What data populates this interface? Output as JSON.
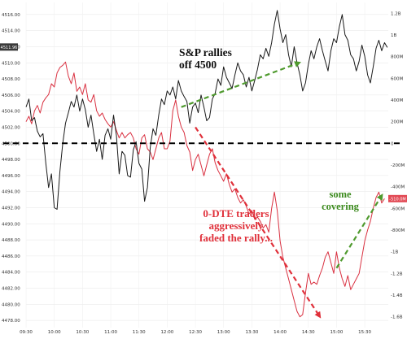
{
  "chart_data": {
    "type": "line",
    "x_ticks": [
      "09:30",
      "10:00",
      "10:30",
      "11:00",
      "11:30",
      "12:00",
      "12:30",
      "13:00",
      "13:30",
      "14:00",
      "14:30",
      "15:00",
      "15:30"
    ],
    "y_left": {
      "ticks": [
        "4516.00",
        "4514.00",
        "4512.00",
        "4510.00",
        "4508.00",
        "4506.00",
        "4504.00",
        "4502.00",
        "4500.00",
        "4498.00",
        "4496.00",
        "4494.00",
        "4492.00",
        "4490.00",
        "4488.00",
        "4486.00",
        "4484.00",
        "4482.00",
        "4480.00",
        "4478.00"
      ],
      "range": [
        4477.1,
        4517.5
      ],
      "last_value_label": "4511.96"
    },
    "y_right": {
      "ticks": [
        "1.2B",
        "1B",
        "800M",
        "600M",
        "400M",
        "200M",
        "0",
        "-200M",
        "-400M",
        "-600M",
        "-800M",
        "-1B",
        "-1.2B",
        "-1.4B",
        "-1.6B"
      ],
      "tick_values": [
        1.2,
        1.0,
        0.8,
        0.6,
        0.4,
        0.2,
        0,
        -0.2,
        -0.4,
        -0.6,
        -0.8,
        -1.0,
        -1.2,
        -1.4,
        -1.6
      ],
      "range": [
        -1.7,
        1.3
      ],
      "last_value_label": "-510.0M"
    },
    "grid": true,
    "series": [
      {
        "axis": "left",
        "color": "#1a1a1a",
        "x": [
          "09:30",
          "09:33",
          "09:36",
          "09:39",
          "09:42",
          "09:45",
          "09:48",
          "09:51",
          "09:54",
          "09:57",
          "10:00",
          "10:03",
          "10:06",
          "10:09",
          "10:12",
          "10:15",
          "10:18",
          "10:21",
          "10:24",
          "10:27",
          "10:30",
          "10:33",
          "10:36",
          "10:39",
          "10:42",
          "10:45",
          "10:48",
          "10:51",
          "10:54",
          "10:57",
          "11:00",
          "11:03",
          "11:06",
          "11:09",
          "11:12",
          "11:15",
          "11:18",
          "11:21",
          "11:24",
          "11:27",
          "11:30",
          "11:33",
          "11:36",
          "11:39",
          "11:42",
          "11:45",
          "11:48",
          "11:51",
          "11:54",
          "11:57",
          "12:00",
          "12:03",
          "12:06",
          "12:09",
          "12:12",
          "12:15",
          "12:18",
          "12:21",
          "12:24",
          "12:27",
          "12:30",
          "12:33",
          "12:36",
          "12:39",
          "12:42",
          "12:45",
          "12:48",
          "12:51",
          "12:54",
          "12:57",
          "13:00",
          "13:03",
          "13:06",
          "13:09",
          "13:12",
          "13:15",
          "13:18",
          "13:21",
          "13:24",
          "13:27",
          "13:30",
          "13:33",
          "13:36",
          "13:39",
          "13:42",
          "13:45",
          "13:48",
          "13:51",
          "13:54",
          "13:57",
          "14:00",
          "14:03",
          "14:06",
          "14:09",
          "14:12",
          "14:15",
          "14:18",
          "14:21",
          "14:24",
          "14:27",
          "14:30",
          "14:33",
          "14:36",
          "14:39",
          "14:42",
          "14:45",
          "14:48",
          "14:51",
          "14:54",
          "14:57",
          "15:00",
          "15:03",
          "15:06",
          "15:09",
          "15:12",
          "15:15",
          "15:18",
          "15:21",
          "15:24",
          "15:27",
          "15:30",
          "15:33",
          "15:36",
          "15:39",
          "15:42",
          "15:45",
          "15:48",
          "15:51",
          "15:54"
        ],
        "values": [
          4504.5,
          4505.5,
          4502.8,
          4503.2,
          4501.5,
          4500.8,
          4501.2,
          4497.5,
          4494.5,
          4496.2,
          4492.0,
          4491.8,
          4496.5,
          4500.0,
          4502.5,
          4503.8,
          4505.2,
          4504.5,
          4506.0,
          4504.0,
          4505.5,
          4504.2,
          4502.0,
          4503.5,
          4501.2,
          4499.0,
          4500.5,
          4498.0,
          4501.0,
          4501.8,
          4500.5,
          4503.5,
          4501.0,
          4496.2,
          4499.0,
          4498.5,
          4496.0,
          4495.8,
          4499.2,
          4500.2,
          4497.5,
          4496.8,
          4492.8,
          4494.5,
          4499.5,
          4501.8,
          4501.0,
          4503.5,
          4505.5,
          4504.8,
          4506.5,
          4506.0,
          4507.0,
          4505.5,
          4507.8,
          4506.5,
          4505.8,
          4505.2,
          4502.5,
          4504.5,
          4505.0,
          4503.8,
          4506.0,
          4504.5,
          4502.8,
          4503.2,
          4505.5,
          4506.2,
          4508.0,
          4507.2,
          4509.5,
          4508.2,
          4507.5,
          4506.8,
          4508.5,
          4510.0,
          4509.0,
          4508.5,
          4507.0,
          4508.2,
          4506.5,
          4507.8,
          4509.2,
          4511.0,
          4510.5,
          4511.8,
          4510.8,
          4512.5,
          4514.8,
          4516.5,
          4514.2,
          4512.5,
          4513.5,
          4511.0,
          4509.5,
          4512.0,
          4510.0,
          4508.5,
          4506.5,
          4507.5,
          4509.8,
          4511.5,
          4510.5,
          4512.0,
          4513.0,
          4511.5,
          4510.2,
          4509.0,
          4511.5,
          4513.0,
          4512.5,
          4514.5,
          4516.0,
          4513.5,
          4512.8,
          4511.0,
          4510.5,
          4509.0,
          4510.2,
          4512.2,
          4510.8,
          4508.5,
          4507.5,
          4509.5,
          4511.8,
          4512.8,
          4511.5,
          4512.5,
          4511.9
        ]
      },
      {
        "axis": "right",
        "color": "#d93040",
        "x": [
          "09:30",
          "09:33",
          "09:36",
          "09:39",
          "09:42",
          "09:45",
          "09:48",
          "09:51",
          "09:54",
          "09:57",
          "10:00",
          "10:03",
          "10:06",
          "10:09",
          "10:12",
          "10:15",
          "10:18",
          "10:21",
          "10:24",
          "10:27",
          "10:30",
          "10:33",
          "10:36",
          "10:39",
          "10:42",
          "10:45",
          "10:48",
          "10:51",
          "10:54",
          "10:57",
          "11:00",
          "11:03",
          "11:06",
          "11:09",
          "11:12",
          "11:15",
          "11:18",
          "11:21",
          "11:24",
          "11:27",
          "11:30",
          "11:33",
          "11:36",
          "11:39",
          "11:42",
          "11:45",
          "11:48",
          "11:51",
          "11:54",
          "11:57",
          "12:00",
          "12:03",
          "12:06",
          "12:09",
          "12:12",
          "12:15",
          "12:18",
          "12:21",
          "12:24",
          "12:27",
          "12:30",
          "12:33",
          "12:36",
          "12:39",
          "12:42",
          "12:45",
          "12:48",
          "12:51",
          "12:54",
          "12:57",
          "13:00",
          "13:03",
          "13:06",
          "13:09",
          "13:12",
          "13:15",
          "13:18",
          "13:21",
          "13:24",
          "13:27",
          "13:30",
          "13:33",
          "13:36",
          "13:39",
          "13:42",
          "13:45",
          "13:48",
          "13:51",
          "13:54",
          "13:57",
          "14:00",
          "14:03",
          "14:06",
          "14:09",
          "14:12",
          "14:15",
          "14:18",
          "14:21",
          "14:24",
          "14:27",
          "14:30",
          "14:33",
          "14:36",
          "14:39",
          "14:42",
          "14:45",
          "14:48",
          "14:51",
          "14:54",
          "14:57",
          "15:00",
          "15:03",
          "15:06",
          "15:09",
          "15:12",
          "15:15",
          "15:18",
          "15:21",
          "15:24",
          "15:27",
          "15:30",
          "15:33",
          "15:36",
          "15:39",
          "15:42",
          "15:45",
          "15:48",
          "15:51"
        ],
        "values": [
          0.2,
          0.25,
          0.18,
          0.3,
          0.35,
          0.28,
          0.38,
          0.42,
          0.45,
          0.55,
          0.52,
          0.65,
          0.7,
          0.72,
          0.75,
          0.62,
          0.55,
          0.65,
          0.48,
          0.52,
          0.45,
          0.55,
          0.4,
          0.38,
          0.45,
          0.3,
          0.25,
          0.28,
          0.22,
          0.18,
          0.15,
          0.2,
          0.12,
          0.05,
          0.1,
          0.05,
          0.08,
          0.1,
          0.05,
          -0.05,
          -0.1,
          0.05,
          0.08,
          -0.05,
          -0.08,
          -0.15,
          -0.05,
          0.05,
          0.1,
          -0.05,
          -0.05,
          0.02,
          0.3,
          0.4,
          0.25,
          0.15,
          0.1,
          -0.02,
          -0.08,
          -0.25,
          -0.15,
          -0.1,
          -0.2,
          -0.3,
          -0.2,
          -0.1,
          -0.05,
          -0.18,
          -0.25,
          -0.3,
          -0.35,
          -0.28,
          -0.38,
          -0.45,
          -0.42,
          -0.5,
          -0.55,
          -0.52,
          -0.58,
          -0.65,
          -0.62,
          -0.7,
          -0.68,
          -0.72,
          -0.78,
          -0.75,
          -0.82,
          -0.6,
          -0.45,
          -0.62,
          -0.9,
          -1.05,
          -1.15,
          -1.25,
          -1.35,
          -1.45,
          -1.55,
          -1.6,
          -1.58,
          -1.38,
          -1.2,
          -1.3,
          -1.28,
          -1.3,
          -1.22,
          -1.15,
          -1.05,
          -1.0,
          -1.1,
          -1.2,
          -1.0,
          -1.15,
          -1.25,
          -1.32,
          -1.22,
          -1.35,
          -1.3,
          -1.25,
          -1.2,
          -1.05,
          -0.9,
          -0.8,
          -0.72,
          -0.6,
          -0.5,
          -0.45,
          -0.55,
          -0.51
        ]
      }
    ],
    "reference_lines": [
      {
        "axis": "left",
        "value": 4500.0,
        "style": "dashed",
        "color": "#000000"
      }
    ],
    "annotations": [
      {
        "text_lines": [
          "S&P rallies",
          "off 4500"
        ],
        "color": "#111111"
      },
      {
        "text_lines": [
          "0-DTE traders",
          "aggressively",
          "faded the rally..."
        ],
        "color": "#e0303a"
      },
      {
        "text_lines": [
          "some",
          "covering"
        ],
        "color": "#3c8a1e"
      }
    ],
    "arrows": [
      {
        "color": "#4f9a2e",
        "from": [
          "12:15",
          4504.5
        ],
        "to": [
          "14:20",
          4510.0
        ],
        "axis": "left"
      },
      {
        "color": "#e0303a",
        "from": [
          "12:30",
          4502.0
        ],
        "to": [
          "14:42",
          4478.5
        ],
        "axis": "left"
      },
      {
        "color": "#4f9a2e",
        "from": [
          "15:00",
          4484.5
        ],
        "to": [
          "15:48",
          4493.5
        ],
        "axis": "left"
      }
    ]
  }
}
